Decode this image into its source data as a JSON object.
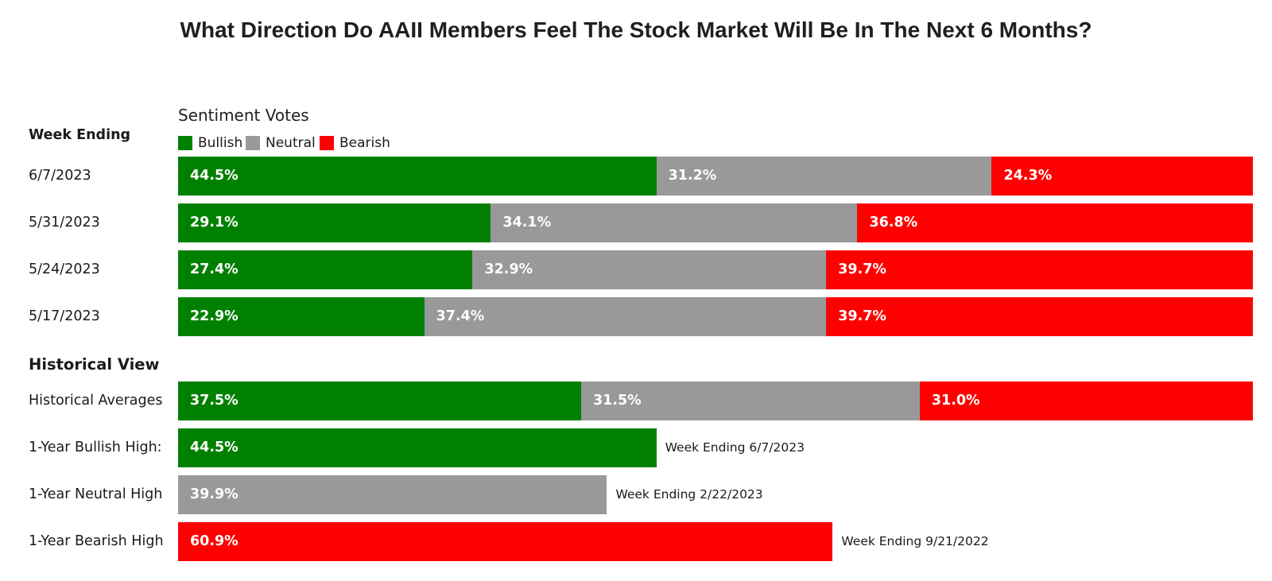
{
  "title": "What Direction Do AAII Members Feel The Stock Market Will Be In The Next 6 Months?",
  "legend_title": "Sentiment Votes",
  "column_header": "Week Ending",
  "historical_header": "Historical View",
  "colors": {
    "bullish": "#008000",
    "neutral": "#999999",
    "bearish": "#ff0000"
  },
  "chart_data": {
    "type": "bar",
    "orientation": "horizontal",
    "stacked": true,
    "xlim": [
      0,
      100
    ],
    "legend": [
      "Bullish",
      "Neutral",
      "Bearish"
    ],
    "legend_placement": "top-left",
    "series": [
      {
        "name": "Bullish",
        "key": "bullish"
      },
      {
        "name": "Neutral",
        "key": "neutral"
      },
      {
        "name": "Bearish",
        "key": "bearish"
      }
    ],
    "weekly": [
      {
        "label": "6/7/2023",
        "bullish": 44.5,
        "neutral": 31.2,
        "bearish": 24.3
      },
      {
        "label": "5/31/2023",
        "bullish": 29.1,
        "neutral": 34.1,
        "bearish": 36.8
      },
      {
        "label": "5/24/2023",
        "bullish": 27.4,
        "neutral": 32.9,
        "bearish": 39.7
      },
      {
        "label": "5/17/2023",
        "bullish": 22.9,
        "neutral": 37.4,
        "bearish": 39.7
      }
    ],
    "historical": [
      {
        "label": "Historical Averages",
        "bullish": 37.5,
        "neutral": 31.5,
        "bearish": 31.0
      },
      {
        "label": "1-Year Bullish High:",
        "bullish": 44.5,
        "note": "Week Ending 6/7/2023"
      },
      {
        "label": "1-Year Neutral High",
        "neutral": 39.9,
        "note": "Week Ending 2/22/2023"
      },
      {
        "label": "1-Year Bearish High",
        "bearish": 60.9,
        "note": "Week Ending 9/21/2022"
      }
    ]
  }
}
